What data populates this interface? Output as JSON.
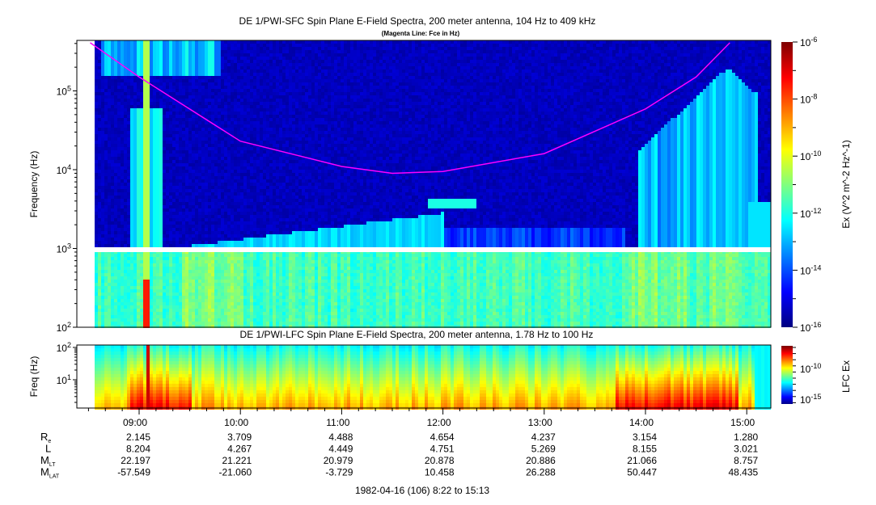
{
  "chart_data": [
    {
      "type": "heatmap",
      "title": "DE 1/PWI-SFC  Spin Plane E-Field Spectra, 200 meter antenna, 104 Hz to 409 kHz",
      "subtitle": "(Magenta Line: Fce in Hz)",
      "ylabel": "Frequency (Hz)",
      "yscale": "log",
      "ylim": [
        100,
        409000
      ],
      "yticks": [
        "10^2",
        "10^3",
        "10^4",
        "10^5"
      ],
      "colorbar": {
        "label": "Ex (V^2 m^-2 Hz^-1)",
        "scale": "log",
        "range": [
          1e-16,
          1e-06
        ],
        "ticks": [
          "10^-6",
          "10^-8",
          "10^-10",
          "10^-12",
          "10^-14",
          "10^-16"
        ],
        "colormap": "jet"
      },
      "data_gap_hz": 1000,
      "fce_line": {
        "color": "#ff00ff",
        "time": [
          "08:31",
          "09:00",
          "10:00",
          "11:00",
          "11:30",
          "12:00",
          "13:00",
          "14:00",
          "14:30",
          "14:50"
        ],
        "freq_hz": [
          409000,
          150000,
          23000,
          11000,
          9000,
          9500,
          16000,
          59000,
          150000,
          409000
        ]
      }
    },
    {
      "type": "heatmap",
      "title": "DE 1/PWI-LFC  Spin Plane E-Field Spectra, 200 meter antenna, 1.78 Hz to 100 Hz",
      "ylabel": "Freq (Hz)",
      "yscale": "log",
      "ylim": [
        1.78,
        100
      ],
      "yticks": [
        "10^1",
        "10^2"
      ],
      "colorbar": {
        "label": "LFC Ex",
        "scale": "log",
        "ticks": [
          "10^-10",
          "10^-15"
        ],
        "colormap": "jet"
      }
    }
  ],
  "time_axis": {
    "ticks": [
      "09:00",
      "10:00",
      "11:00",
      "12:00",
      "13:00",
      "14:00",
      "15:00"
    ],
    "range": [
      "08:22",
      "15:13"
    ],
    "caption": "1982-04-16 (106) 8:22 to 15:13"
  },
  "ephemeris": {
    "rows": [
      {
        "label": "R",
        "sub": "e",
        "values": [
          "2.145",
          "3.709",
          "4.488",
          "4.654",
          "4.237",
          "3.154",
          "1.280"
        ]
      },
      {
        "label": "L",
        "sub": "",
        "values": [
          "8.204",
          "4.267",
          "4.449",
          "4.751",
          "5.269",
          "8.155",
          "3.021"
        ]
      },
      {
        "label": "M",
        "sub": "LT",
        "values": [
          "22.197",
          "21.221",
          "20.979",
          "20.878",
          "20.886",
          "21.066",
          "8.757"
        ]
      },
      {
        "label": "M",
        "sub": "LAT",
        "values": [
          "-57.549",
          "-21.060",
          "-3.729",
          "10.458",
          "26.288",
          "50.447",
          "48.435"
        ]
      }
    ]
  }
}
